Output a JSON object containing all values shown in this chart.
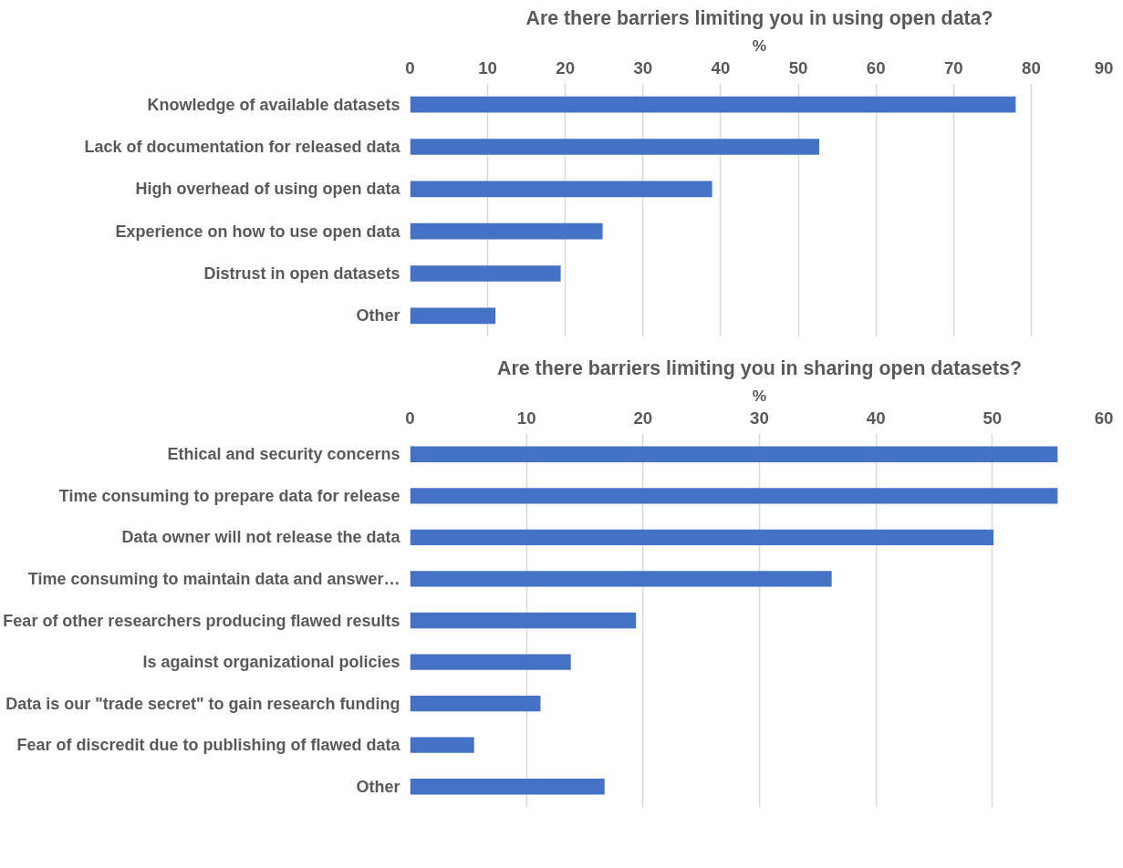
{
  "chart_data": [
    {
      "type": "bar",
      "orientation": "horizontal",
      "title": "Are there barriers limiting you in using open data?",
      "xlabel": "%",
      "categories": [
        "Knowledge of available datasets",
        "Lack of documentation for released data",
        "High overhead of using open data",
        "Experience on how to use open data",
        "Distrust in open datasets",
        "Other"
      ],
      "series": [
        {
          "color": "#4472c4",
          "values": [
            78,
            52.7,
            38.9,
            24.8,
            19.4,
            11
          ]
        }
      ],
      "xlim": [
        0,
        90
      ],
      "xticks": [
        0,
        10,
        20,
        30,
        40,
        50,
        60,
        70,
        80,
        90
      ],
      "grid": "x"
    },
    {
      "type": "bar",
      "orientation": "horizontal",
      "title": "Are there barriers limiting you in sharing open datasets?",
      "xlabel": "%",
      "categories": [
        "Ethical and security concerns",
        "Time consuming to prepare data for release",
        "Data owner will not release the data",
        "Time consuming to maintain data and answer…",
        "Fear of other researchers producing flawed results",
        "Is against organizational policies",
        "Data is our \"trade secret\" to gain research funding",
        "Fear of discredit due to publishing of flawed data",
        "Other"
      ],
      "series": [
        {
          "color": "#4472c4",
          "values": [
            55.6,
            55.6,
            50.1,
            36.2,
            19.4,
            13.8,
            11.2,
            5.5,
            16.7
          ]
        }
      ],
      "xlim": [
        0,
        60
      ],
      "xticks": [
        0,
        10,
        20,
        30,
        40,
        50,
        60
      ],
      "grid": "x"
    }
  ]
}
